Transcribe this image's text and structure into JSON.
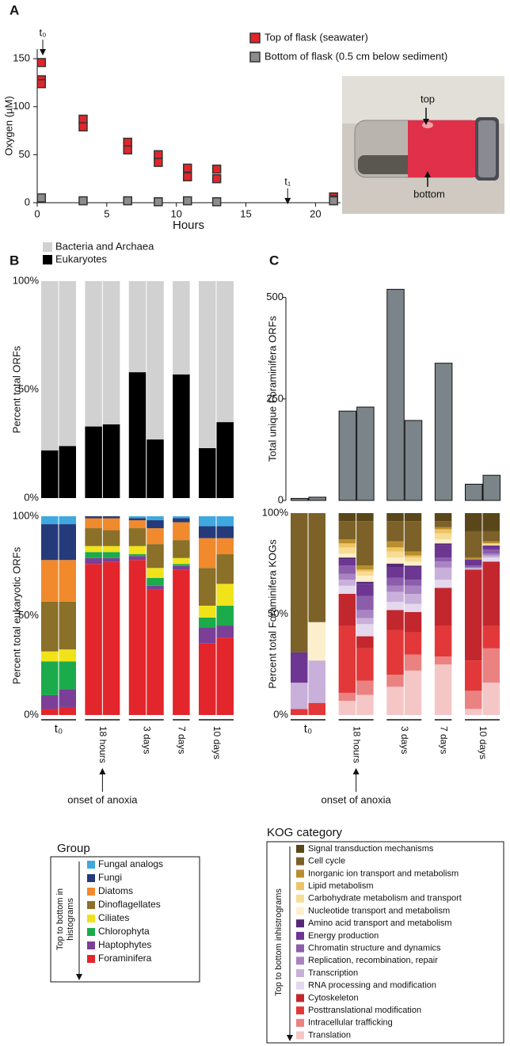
{
  "panel_labels": [
    "A",
    "B",
    "C"
  ],
  "photo_labels": [
    "top",
    "bottom"
  ],
  "chart_data": [
    {
      "type": "scatter",
      "xlabel": "Hours",
      "ylabel": "Oxygen (µM)",
      "xlim": [
        0,
        21.8
      ],
      "ylim": [
        0,
        160
      ],
      "xticks": [
        0,
        5,
        10,
        15,
        20
      ],
      "yticks": [
        0,
        50,
        100,
        150
      ],
      "annotations": [
        {
          "text": "t₀",
          "x": 0.4
        },
        {
          "text": "t₁",
          "x": 18
        }
      ],
      "series": [
        {
          "name": "Top of flask (seawater)",
          "color": "#e0262b",
          "x": [
            0.3,
            0.3,
            0.3,
            3.3,
            3.3,
            6.5,
            6.5,
            8.7,
            8.7,
            10.8,
            10.8,
            12.9,
            12.9,
            21.3,
            21.3
          ],
          "values": [
            146,
            128,
            124,
            87,
            79,
            63,
            55,
            50,
            42,
            36,
            27,
            35,
            25,
            6,
            3
          ]
        },
        {
          "name": "Bottom of flask (0.5 cm below sediment)",
          "color": "#8c8c8c",
          "x": [
            0.3,
            3.3,
            6.5,
            8.7,
            10.8,
            12.9,
            21.3
          ],
          "values": [
            5,
            2,
            2,
            1,
            2,
            1,
            2
          ]
        }
      ]
    },
    {
      "type": "stacked_bar",
      "ylabel": "Percent total ORFs",
      "ylim": [
        0,
        100
      ],
      "yticks": [
        {
          "value": 0,
          "label": "0%"
        },
        {
          "value": 50,
          "label": "50%"
        },
        {
          "value": 100,
          "label": "100%"
        }
      ],
      "series": [
        {
          "name": "Eukaryotes",
          "color": "#000000",
          "values": [
            22,
            24,
            33,
            34,
            58,
            27,
            57,
            23,
            35
          ]
        },
        {
          "name": "Bacteria and Archaea",
          "color": "#d1d1d1",
          "values": [
            78,
            76,
            67,
            66,
            42,
            73,
            43,
            77,
            65
          ]
        }
      ]
    },
    {
      "type": "stacked_bar",
      "ylabel": "Percent total eukaryotic ORFs",
      "ylim": [
        0,
        100
      ],
      "yticks": [
        {
          "value": 0,
          "label": "0%"
        },
        {
          "value": 50,
          "label": "50%"
        },
        {
          "value": 100,
          "label": "100%"
        }
      ],
      "categories": [
        "t₀",
        "t₀",
        "18 hours",
        "18 hours",
        "3 days",
        "3 days",
        "7 days",
        "10 days",
        "10 days"
      ],
      "annotation": "onset of anoxia",
      "legend_title": "Group",
      "legend_note": [
        "Top to bottom in",
        "histograms"
      ],
      "series": [
        {
          "name": "Foraminifera",
          "color": "#e3262b",
          "values": [
            3,
            4,
            76,
            77,
            78,
            63,
            73,
            36,
            39
          ]
        },
        {
          "name": "Haptophytes",
          "color": "#7b3f98",
          "values": [
            7,
            9,
            3,
            2,
            2,
            2,
            2,
            8,
            6
          ]
        },
        {
          "name": "Chlorophyta",
          "color": "#1cab4b",
          "values": [
            17,
            14,
            3,
            3,
            1,
            4,
            1,
            5,
            10
          ]
        },
        {
          "name": "Ciliates",
          "color": "#f0e31a",
          "values": [
            5,
            6,
            3,
            3,
            4,
            5,
            3,
            6,
            11
          ]
        },
        {
          "name": "Dinoflagellates",
          "color": "#8a7028",
          "values": [
            25,
            24,
            9,
            8,
            9,
            12,
            9,
            19,
            15
          ]
        },
        {
          "name": "Diatoms",
          "color": "#f08a2c",
          "values": [
            21,
            21,
            5,
            6,
            4,
            8,
            9,
            15,
            8
          ]
        },
        {
          "name": "Fungi",
          "color": "#253a7a",
          "values": [
            18,
            18,
            1,
            1,
            1,
            4,
            2,
            6,
            6
          ]
        },
        {
          "name": "Fungal analogs",
          "color": "#3fa8df",
          "values": [
            4,
            4,
            0,
            0,
            1,
            2,
            1,
            5,
            5
          ]
        }
      ]
    },
    {
      "type": "bar",
      "ylabel": "Total unique Foraminifera ORFs",
      "ylim": [
        0,
        550
      ],
      "yticks": [
        0,
        250,
        500
      ],
      "color": "#7b8489",
      "values": [
        5,
        8,
        220,
        230,
        520,
        197,
        338,
        40,
        62
      ]
    },
    {
      "type": "stacked_bar",
      "ylabel": "Percent total Foraminifera KOGs",
      "ylim": [
        0,
        100
      ],
      "yticks": [
        {
          "value": 0,
          "label": "0%"
        },
        {
          "value": 50,
          "label": "50%"
        },
        {
          "value": 100,
          "label": "100%"
        }
      ],
      "categories": [
        "t₀",
        "t₀",
        "18 hours",
        "18 hours",
        "3 days",
        "3 days",
        "7 days",
        "10 days",
        "10 days"
      ],
      "annotation": "onset of anoxia",
      "legend_title": "KOG category",
      "legend_note": [
        "Top to bottom inhistrograms"
      ],
      "series": [
        {
          "name": "Translation",
          "color": "#f5c6c6",
          "values": [
            0,
            0,
            7,
            10,
            14,
            22,
            25,
            3,
            16
          ]
        },
        {
          "name": "Intracellular trafficking",
          "color": "#ea8282",
          "values": [
            0,
            0,
            4,
            7,
            6,
            8,
            4,
            9,
            17
          ]
        },
        {
          "name": "Posttranslational modification",
          "color": "#e2383a",
          "values": [
            3,
            6,
            33,
            16,
            22,
            11,
            15,
            15,
            11
          ]
        },
        {
          "name": "Cytoskeleton",
          "color": "#c1272d",
          "values": [
            0,
            0,
            16,
            6,
            10,
            10,
            19,
            45,
            32
          ]
        },
        {
          "name": "RNA processing and modification",
          "color": "#e4d8ee",
          "values": [
            0,
            0,
            4,
            6,
            4,
            4,
            4,
            0,
            2
          ]
        },
        {
          "name": "Transcription",
          "color": "#c9b0da",
          "values": [
            13,
            21,
            3,
            3,
            5,
            5,
            6,
            1,
            1
          ]
        },
        {
          "name": "Replication, recombination, repair",
          "color": "#a983c2",
          "values": [
            0,
            0,
            3,
            4,
            3,
            4,
            3,
            0,
            1
          ]
        },
        {
          "name": "Chromatin structure and dynamics",
          "color": "#8b5dab",
          "values": [
            0,
            0,
            4,
            7,
            4,
            3,
            2,
            1,
            2
          ]
        },
        {
          "name": "Energy production",
          "color": "#6c3692",
          "values": [
            15,
            0,
            3,
            6,
            5,
            6,
            6,
            3,
            2
          ]
        },
        {
          "name": "Amino acid transport and metabolism",
          "color": "#552778",
          "values": [
            0,
            0,
            1,
            1,
            2,
            1,
            1,
            0,
            0
          ]
        },
        {
          "name": "Nucleotide transport and metabolism",
          "color": "#fcefcc",
          "values": [
            0,
            19,
            2,
            3,
            3,
            2,
            2,
            0,
            0
          ]
        },
        {
          "name": "Carbohydrate metabolism and transport",
          "color": "#f7dc94",
          "values": [
            0,
            0,
            3,
            2,
            3,
            2,
            3,
            0,
            1
          ]
        },
        {
          "name": "Lipid metabolism",
          "color": "#eec465",
          "values": [
            0,
            0,
            2,
            1,
            2,
            1,
            2,
            0,
            0
          ]
        },
        {
          "name": "Inorganic ion transport and metabolism",
          "color": "#b98f2d",
          "values": [
            0,
            0,
            2,
            2,
            3,
            2,
            1,
            1,
            1
          ]
        },
        {
          "name": "Cell cycle",
          "color": "#7c6128",
          "values": [
            69,
            54,
            9,
            22,
            10,
            15,
            3,
            13,
            5
          ]
        },
        {
          "name": "Signal transduction mechanisms",
          "color": "#5a4719",
          "values": [
            0,
            0,
            4,
            4,
            4,
            4,
            4,
            9,
            9
          ]
        }
      ]
    }
  ]
}
